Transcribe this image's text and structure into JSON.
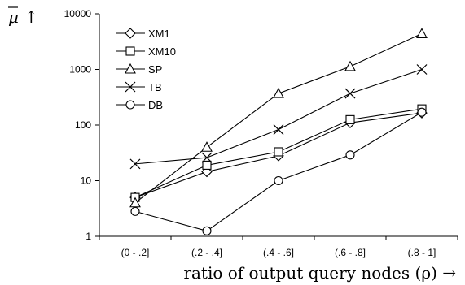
{
  "chart_data": {
    "type": "line",
    "title": "",
    "xlabel": "ratio of output query nodes (ρ) →",
    "ylabel_symbol": "μ",
    "ylabel_arrow": "↑",
    "yscale": "log",
    "ylim": [
      1,
      10000
    ],
    "y_ticks": [
      "1",
      "10",
      "100",
      "1000",
      "10000"
    ],
    "grid": false,
    "legend_position": "top-left",
    "categories": [
      "(0 - .2]",
      "(.2 - .4]",
      "(.4 - .6]",
      "(.6 - .8]",
      "(.8 - 1]"
    ],
    "series": [
      {
        "name": "XM1",
        "marker": "diamond",
        "values": [
          5,
          14.5,
          28,
          110,
          165
        ]
      },
      {
        "name": "XM10",
        "marker": "square",
        "values": [
          5,
          19,
          33,
          125,
          195
        ]
      },
      {
        "name": "SP",
        "marker": "triangle",
        "values": [
          4,
          40,
          370,
          1130,
          4400
        ]
      },
      {
        "name": "TB",
        "marker": "x",
        "values": [
          20,
          26,
          83,
          370,
          1000
        ]
      },
      {
        "name": "DB",
        "marker": "circle",
        "values": [
          2.8,
          1.25,
          10,
          29,
          170
        ]
      }
    ]
  }
}
